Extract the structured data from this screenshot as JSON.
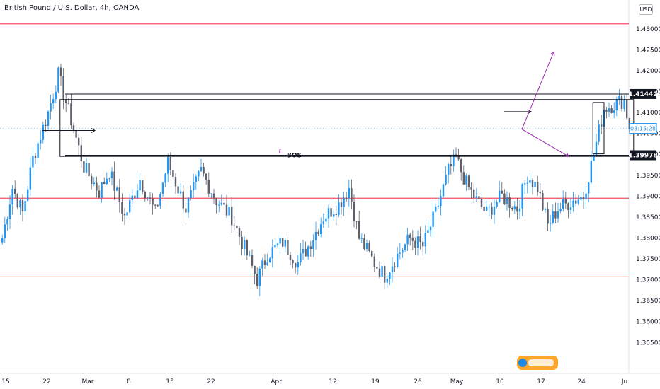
{
  "header": {
    "title": "British Pound / U.S. Dollar, 4h, OANDA",
    "currency": "USD"
  },
  "colors": {
    "up": "#2196f3",
    "down": "#5d606b",
    "red_line": "#f7525f",
    "arrow": "#9c27b0",
    "box": "#131722",
    "countdown_bg": "#2196f3"
  },
  "chart_data": {
    "type": "candlestick",
    "ylim": [
      1.352,
      1.432
    ],
    "y_ticks": [
      "1.43000",
      "1.42500",
      "1.42000",
      "1.41500",
      "1.41000",
      "1.40500",
      "1.40000",
      "1.39500",
      "1.39000",
      "1.38500",
      "1.38000",
      "1.37500",
      "1.37000",
      "1.36500",
      "1.36000",
      "1.35500"
    ],
    "x_ticks": [
      "15",
      "22",
      "Mar",
      "8",
      "15",
      "22",
      "Apr",
      "12",
      "19",
      "26",
      "May",
      "10",
      "17",
      "24",
      "Ju"
    ],
    "price_labels": [
      {
        "value": 1.41442,
        "text": "1.41442"
      },
      {
        "value": 1.39978,
        "text": "1.39978"
      }
    ],
    "current_price": {
      "value": 1.4062,
      "text": "03:15:28"
    },
    "horizontal_levels": [
      1.4312,
      1.3895,
      1.3707
    ],
    "annotation": "BOS",
    "keyframes": [
      {
        "i": 0,
        "p": 1.38
      },
      {
        "i": 4,
        "p": 1.392
      },
      {
        "i": 8,
        "p": 1.386
      },
      {
        "i": 12,
        "p": 1.399
      },
      {
        "i": 18,
        "p": 1.41
      },
      {
        "i": 22,
        "p": 1.419
      },
      {
        "i": 28,
        "p": 1.406
      },
      {
        "i": 32,
        "p": 1.397
      },
      {
        "i": 38,
        "p": 1.391
      },
      {
        "i": 42,
        "p": 1.396
      },
      {
        "i": 48,
        "p": 1.385
      },
      {
        "i": 54,
        "p": 1.394
      },
      {
        "i": 60,
        "p": 1.386
      },
      {
        "i": 65,
        "p": 1.398
      },
      {
        "i": 72,
        "p": 1.387
      },
      {
        "i": 78,
        "p": 1.396
      },
      {
        "i": 84,
        "p": 1.389
      },
      {
        "i": 90,
        "p": 1.385
      },
      {
        "i": 96,
        "p": 1.376
      },
      {
        "i": 100,
        "p": 1.37
      },
      {
        "i": 104,
        "p": 1.376
      },
      {
        "i": 110,
        "p": 1.379
      },
      {
        "i": 116,
        "p": 1.374
      },
      {
        "i": 120,
        "p": 1.378
      },
      {
        "i": 126,
        "p": 1.385
      },
      {
        "i": 132,
        "p": 1.388
      },
      {
        "i": 136,
        "p": 1.392
      },
      {
        "i": 140,
        "p": 1.38
      },
      {
        "i": 146,
        "p": 1.374
      },
      {
        "i": 150,
        "p": 1.371
      },
      {
        "i": 154,
        "p": 1.375
      },
      {
        "i": 160,
        "p": 1.38
      },
      {
        "i": 165,
        "p": 1.378
      },
      {
        "i": 170,
        "p": 1.386
      },
      {
        "i": 175,
        "p": 1.396
      },
      {
        "i": 178,
        "p": 1.399
      },
      {
        "i": 182,
        "p": 1.393
      },
      {
        "i": 186,
        "p": 1.389
      },
      {
        "i": 190,
        "p": 1.386
      },
      {
        "i": 196,
        "p": 1.39
      },
      {
        "i": 202,
        "p": 1.387
      },
      {
        "i": 206,
        "p": 1.395
      },
      {
        "i": 210,
        "p": 1.392
      },
      {
        "i": 214,
        "p": 1.383
      },
      {
        "i": 218,
        "p": 1.387
      },
      {
        "i": 224,
        "p": 1.389
      },
      {
        "i": 228,
        "p": 1.39
      },
      {
        "i": 232,
        "p": 1.4
      },
      {
        "i": 236,
        "p": 1.411
      },
      {
        "i": 240,
        "p": 1.412
      },
      {
        "i": 244,
        "p": 1.413
      },
      {
        "i": 246,
        "p": 1.406
      }
    ],
    "box_left": {
      "x": [
        23,
        248
      ],
      "y": [
        1.3995,
        1.4131
      ]
    },
    "box_right": {
      "x": [
        232,
        281
      ],
      "y": [
        1.4001,
        1.4124
      ]
    },
    "dates": [
      "Feb 15",
      "Feb 22",
      "Mar 1",
      "Mar 8",
      "Mar 15",
      "Mar 22",
      "Apr 5",
      "Apr 12",
      "Apr 19",
      "Apr 26",
      "May 3",
      "May 10",
      "May 17",
      "May 24",
      "Jun"
    ]
  }
}
